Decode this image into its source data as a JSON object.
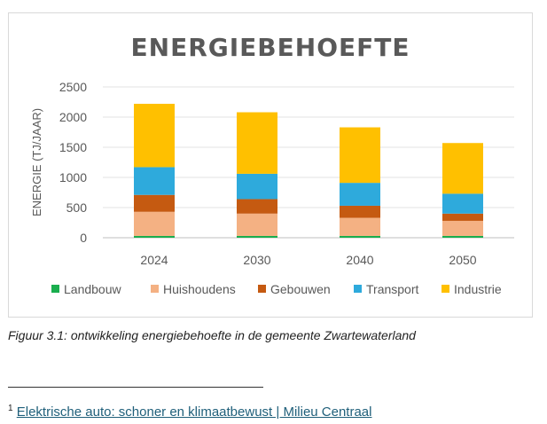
{
  "chart_data": {
    "type": "bar",
    "stacked": true,
    "title": "ENERGIEBEHOEFTE",
    "xlabel": "",
    "ylabel": "ENERGIE (TJ/JAAR)",
    "ylim": [
      0,
      2500
    ],
    "yticks": [
      0,
      500,
      1000,
      1500,
      2000,
      2500
    ],
    "grid": true,
    "legend_position": "bottom",
    "categories": [
      "2024",
      "2030",
      "2040",
      "2050"
    ],
    "series": [
      {
        "name": "Landbouw",
        "color": "#1aae4e",
        "values": [
          30,
          30,
          30,
          30
        ]
      },
      {
        "name": "Huishoudens",
        "color": "#f4b183",
        "values": [
          400,
          370,
          300,
          250
        ]
      },
      {
        "name": "Gebouwen",
        "color": "#c55a11",
        "values": [
          280,
          240,
          200,
          120
        ]
      },
      {
        "name": "Transport",
        "color": "#2eaadc",
        "values": [
          460,
          420,
          380,
          330
        ]
      },
      {
        "name": "Industrie",
        "color": "#ffc000",
        "values": [
          1050,
          1020,
          920,
          840
        ]
      }
    ]
  },
  "caption": "Figuur 3.1: ontwikkeling energiebehoefte in de gemeente Zwartewaterland",
  "footnote": {
    "marker": "1",
    "link_text": "Elektrische auto: schoner en klimaatbewust | Milieu Centraal"
  }
}
